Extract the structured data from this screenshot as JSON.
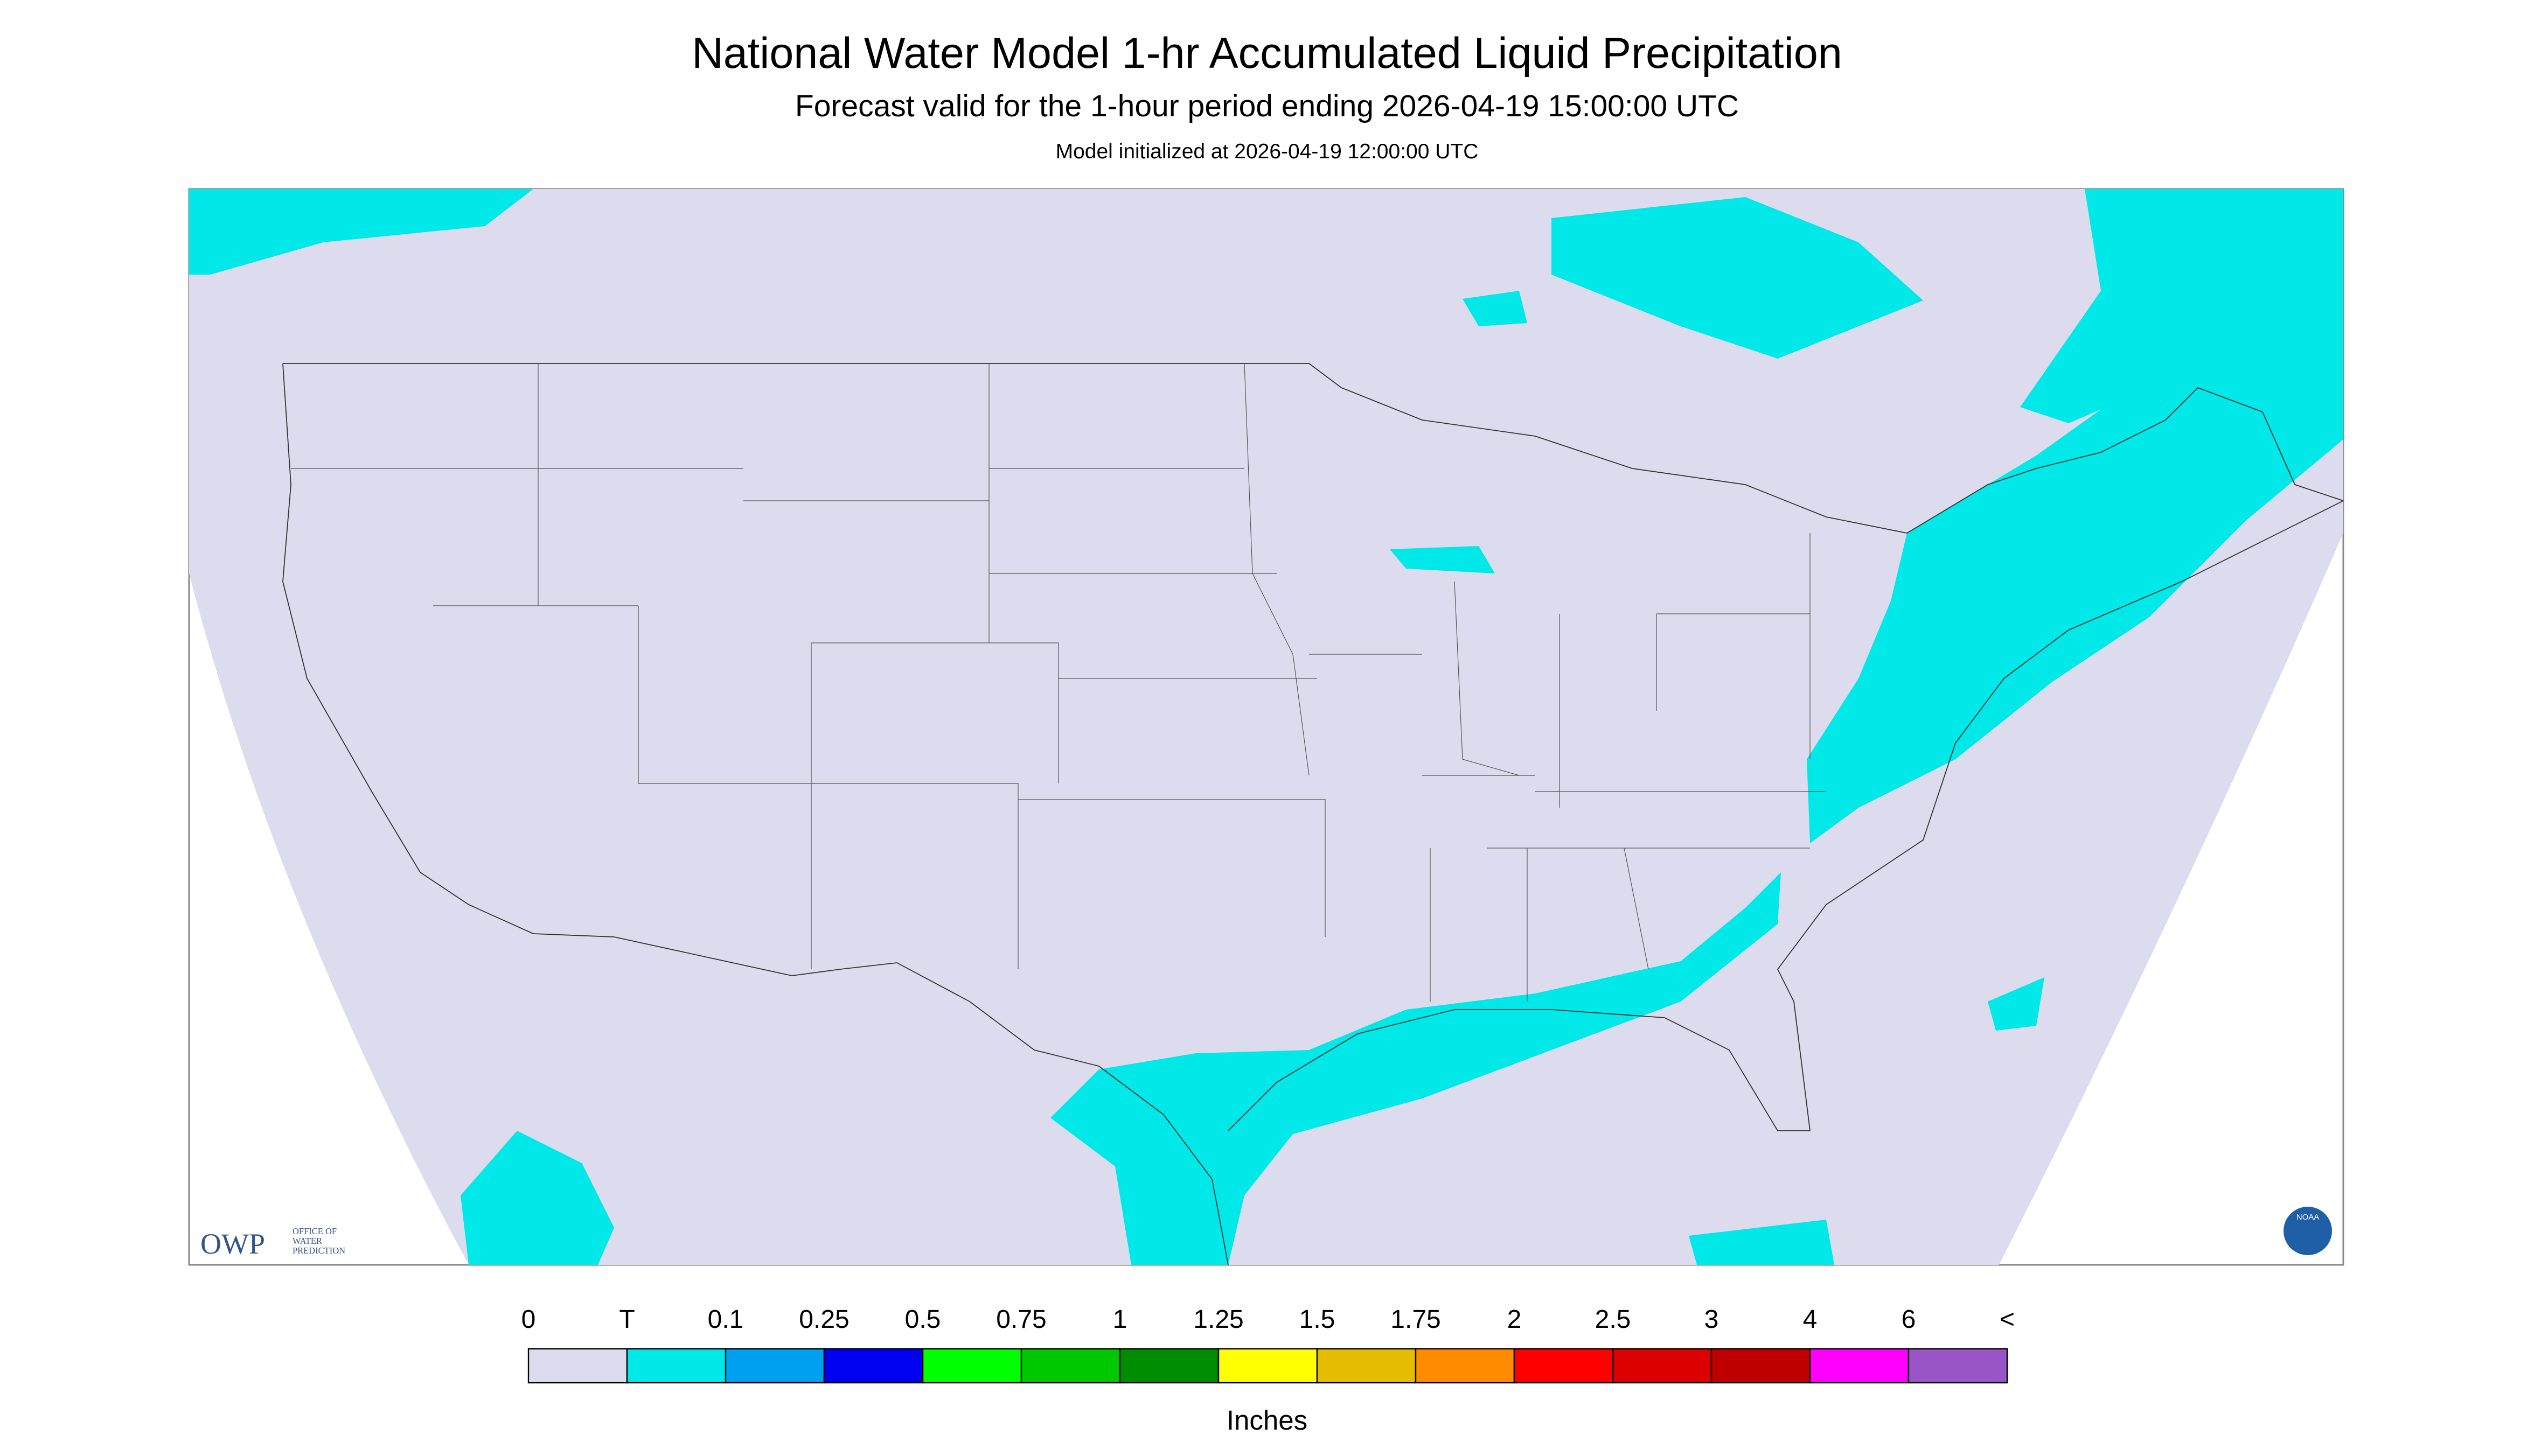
{
  "header": {
    "title": "National Water Model 1-hr Accumulated Liquid Precipitation",
    "subtitle": "Forecast valid for the 1-hour period ending 2026-04-19 15:00:00 UTC",
    "note": "Model initialized at 2026-04-19 12:00:00 UTC"
  },
  "logos": {
    "owp": "OWP",
    "owp_office": [
      "OFFICE OF",
      "WATER",
      "PREDICTION"
    ],
    "noaa": "NOAA"
  },
  "legend": {
    "labels": [
      "0",
      "T",
      "0.1",
      "0.25",
      "0.5",
      "0.75",
      "1",
      "1.25",
      "1.5",
      "1.75",
      "2",
      "2.5",
      "3",
      "4",
      "6",
      "<"
    ],
    "colors": [
      "#dcdcee",
      "#00e8e8",
      "#00a0f0",
      "#0000f0",
      "#00ff00",
      "#00c800",
      "#008c00",
      "#ffff00",
      "#e6bc00",
      "#ff8c00",
      "#ff0000",
      "#dc0000",
      "#be0000",
      "#ff00ff",
      "#9955c8"
    ],
    "unit": "Inches"
  }
}
